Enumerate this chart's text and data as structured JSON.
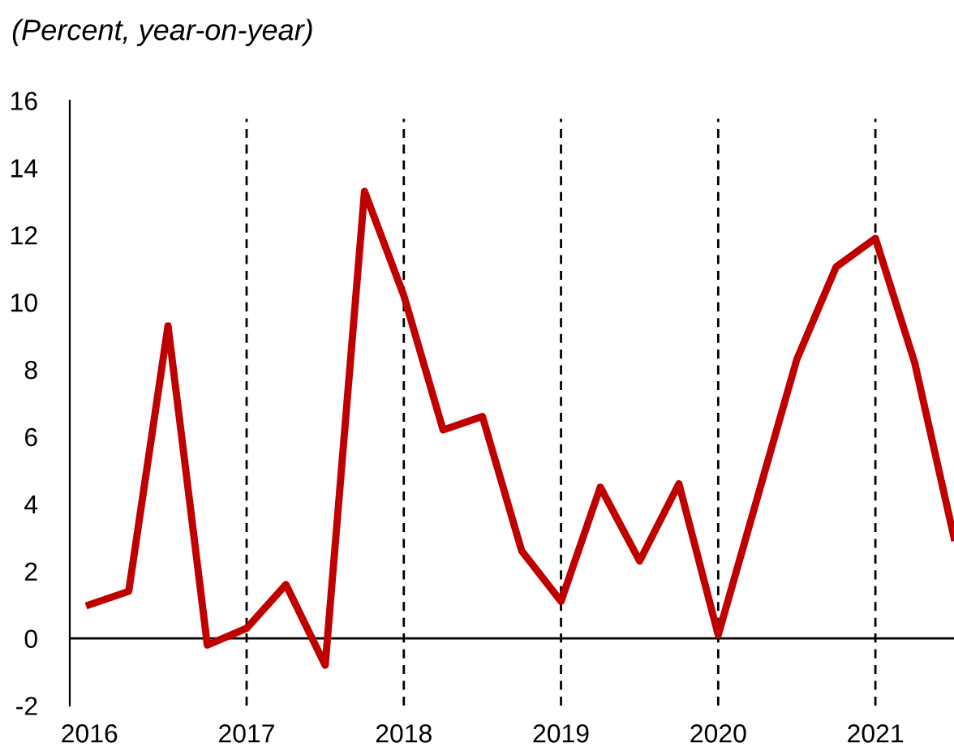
{
  "chart_data": {
    "type": "line",
    "subtitle": "(Percent, year-on-year)",
    "x": [
      2016,
      2016.25,
      2016.5,
      2016.75,
      2017,
      2017.25,
      2017.5,
      2017.75,
      2018,
      2018.25,
      2018.5,
      2018.75,
      2019,
      2019.25,
      2019.5,
      2019.75,
      2020,
      2020.25,
      2020.5,
      2020.75,
      2021,
      2021.25,
      2021.5
    ],
    "series": [
      {
        "color": "#c00000",
        "values": [
          1.0,
          1.4,
          9.3,
          -0.2,
          0.3,
          1.6,
          -0.8,
          13.3,
          10.2,
          6.2,
          6.6,
          2.6,
          1.1,
          4.5,
          2.3,
          4.6,
          0.1,
          4.2,
          8.3,
          11.05,
          11.9,
          8.2,
          3.0
        ]
      }
    ],
    "xlim": [
      2015.875,
      2021.5
    ],
    "xticks": [
      2016,
      2017,
      2018,
      2019,
      2020,
      2021
    ],
    "ylim": [
      -2,
      16
    ],
    "yticks": [
      -2,
      0,
      2,
      4,
      6,
      8,
      10,
      12,
      14,
      16
    ],
    "ref_lines": [
      {
        "axis": "y",
        "value": 0,
        "color": "#000000",
        "line_style": "solid"
      },
      {
        "axis": "x",
        "value": 2017,
        "color": "#000000",
        "line_style": "dashed"
      },
      {
        "axis": "x",
        "value": 2018,
        "color": "#000000",
        "line_style": "dashed"
      },
      {
        "axis": "x",
        "value": 2019,
        "color": "#000000",
        "line_style": "dashed"
      },
      {
        "axis": "x",
        "value": 2020,
        "color": "#000000",
        "line_style": "dashed"
      },
      {
        "axis": "x",
        "value": 2021,
        "color": "#000000",
        "line_style": "dashed"
      }
    ],
    "grid": false,
    "legend": false,
    "marker": "none",
    "line_style": "solid"
  }
}
